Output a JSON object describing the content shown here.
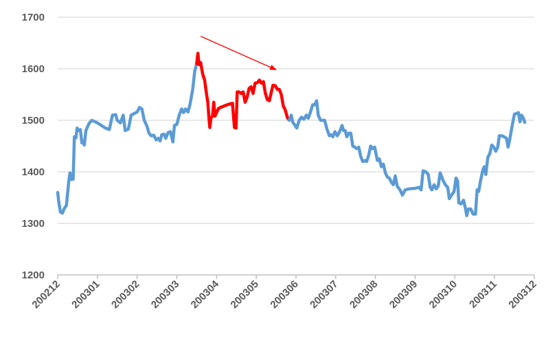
{
  "chart_data": {
    "type": "line",
    "title": "",
    "xlabel": "",
    "ylabel": "",
    "ylim": [
      1200,
      1700
    ],
    "y_ticks": [
      1200,
      1300,
      1400,
      1500,
      1600,
      1700
    ],
    "x_ticks": [
      "200212",
      "200301",
      "200302",
      "200303",
      "200304",
      "200305",
      "200306",
      "200307",
      "200308",
      "200309",
      "200310",
      "200311",
      "200312"
    ],
    "xlim": [
      0,
      12
    ],
    "grid": "horizontal",
    "legend": "none",
    "colors": {
      "series": "#5B9BD5",
      "highlight": "#FF0000",
      "grid": "#D9D9D9",
      "axis": "#BFBFBF",
      "text": "#595959"
    },
    "series": [
      {
        "values": [
          [
            0.0,
            1360
          ],
          [
            0.03,
            1340
          ],
          [
            0.07,
            1322
          ],
          [
            0.12,
            1320
          ],
          [
            0.16,
            1328
          ],
          [
            0.22,
            1335
          ],
          [
            0.28,
            1382
          ],
          [
            0.31,
            1398
          ],
          [
            0.35,
            1385
          ],
          [
            0.39,
            1386
          ],
          [
            0.42,
            1468
          ],
          [
            0.46,
            1466
          ],
          [
            0.49,
            1485
          ],
          [
            0.53,
            1480
          ],
          [
            0.57,
            1482
          ],
          [
            0.61,
            1456
          ],
          [
            0.64,
            1460
          ],
          [
            0.67,
            1452
          ],
          [
            0.71,
            1480
          ],
          [
            0.79,
            1494
          ],
          [
            0.86,
            1500
          ],
          [
            1.0,
            1495
          ],
          [
            1.2,
            1485
          ],
          [
            1.3,
            1482
          ],
          [
            1.38,
            1510
          ],
          [
            1.46,
            1511
          ],
          [
            1.5,
            1500
          ],
          [
            1.58,
            1495
          ],
          [
            1.65,
            1510
          ],
          [
            1.7,
            1480
          ],
          [
            1.78,
            1483
          ],
          [
            1.85,
            1510
          ],
          [
            1.92,
            1513
          ],
          [
            2.0,
            1516
          ],
          [
            2.06,
            1525
          ],
          [
            2.12,
            1522
          ],
          [
            2.18,
            1500
          ],
          [
            2.25,
            1488
          ],
          [
            2.3,
            1475
          ],
          [
            2.35,
            1470
          ],
          [
            2.42,
            1471
          ],
          [
            2.48,
            1462
          ],
          [
            2.53,
            1465
          ],
          [
            2.58,
            1460
          ],
          [
            2.62,
            1472
          ],
          [
            2.68,
            1473
          ],
          [
            2.72,
            1465
          ],
          [
            2.78,
            1476
          ],
          [
            2.84,
            1478
          ],
          [
            2.9,
            1458
          ],
          [
            2.94,
            1490
          ],
          [
            3.0,
            1492
          ],
          [
            3.06,
            1510
          ],
          [
            3.12,
            1522
          ],
          [
            3.17,
            1515
          ],
          [
            3.22,
            1522
          ],
          [
            3.28,
            1516
          ],
          [
            3.33,
            1530
          ],
          [
            3.4,
            1560
          ],
          [
            3.45,
            1595
          ],
          [
            3.5,
            1610
          ]
        ]
      },
      {
        "name": "",
        "highlight": true,
        "values": [
          [
            3.5,
            1610
          ],
          [
            3.53,
            1630
          ],
          [
            3.56,
            1608
          ],
          [
            3.6,
            1612
          ],
          [
            3.65,
            1590
          ],
          [
            3.7,
            1578
          ],
          [
            3.74,
            1555
          ],
          [
            3.78,
            1535
          ],
          [
            3.81,
            1503
          ],
          [
            3.83,
            1486
          ],
          [
            3.86,
            1505
          ],
          [
            3.9,
            1508
          ],
          [
            3.93,
            1535
          ],
          [
            3.96,
            1508
          ],
          [
            4.0,
            1515
          ],
          [
            4.05,
            1523
          ],
          [
            4.1,
            1525
          ],
          [
            4.2,
            1528
          ],
          [
            4.3,
            1531
          ],
          [
            4.4,
            1533
          ],
          [
            4.45,
            1486
          ],
          [
            4.49,
            1485
          ],
          [
            4.52,
            1555
          ],
          [
            4.57,
            1555
          ],
          [
            4.62,
            1552
          ],
          [
            4.67,
            1555
          ],
          [
            4.72,
            1535
          ],
          [
            4.77,
            1545
          ],
          [
            4.82,
            1562
          ],
          [
            4.87,
            1565
          ],
          [
            4.92,
            1552
          ],
          [
            4.97,
            1572
          ],
          [
            5.03,
            1573
          ],
          [
            5.08,
            1578
          ],
          [
            5.13,
            1572
          ],
          [
            5.18,
            1575
          ],
          [
            5.23,
            1552
          ],
          [
            5.28,
            1540
          ],
          [
            5.33,
            1538
          ],
          [
            5.38,
            1555
          ],
          [
            5.42,
            1568
          ],
          [
            5.48,
            1567
          ],
          [
            5.53,
            1560
          ],
          [
            5.58,
            1560
          ],
          [
            5.63,
            1550
          ],
          [
            5.68,
            1528
          ],
          [
            5.73,
            1520
          ],
          [
            5.78,
            1506
          ],
          [
            5.83,
            1500
          ]
        ]
      },
      {
        "values": [
          [
            5.83,
            1500
          ],
          [
            5.88,
            1510
          ],
          [
            5.92,
            1496
          ],
          [
            5.96,
            1492
          ],
          [
            6.02,
            1485
          ],
          [
            6.08,
            1500
          ],
          [
            6.14,
            1506
          ],
          [
            6.2,
            1502
          ],
          [
            6.26,
            1510
          ],
          [
            6.31,
            1504
          ],
          [
            6.36,
            1515
          ],
          [
            6.42,
            1530
          ],
          [
            6.47,
            1530
          ],
          [
            6.52,
            1538
          ],
          [
            6.56,
            1510
          ],
          [
            6.62,
            1500
          ],
          [
            6.68,
            1500
          ],
          [
            6.72,
            1500
          ],
          [
            6.78,
            1483
          ],
          [
            6.84,
            1470
          ],
          [
            6.88,
            1472
          ],
          [
            6.93,
            1468
          ],
          [
            6.98,
            1478
          ],
          [
            7.04,
            1470
          ],
          [
            7.1,
            1478
          ],
          [
            7.16,
            1490
          ],
          [
            7.2,
            1480
          ],
          [
            7.24,
            1480
          ],
          [
            7.28,
            1468
          ],
          [
            7.33,
            1475
          ],
          [
            7.38,
            1475
          ],
          [
            7.43,
            1450
          ],
          [
            7.48,
            1448
          ],
          [
            7.53,
            1445
          ],
          [
            7.58,
            1448
          ],
          [
            7.63,
            1430
          ],
          [
            7.68,
            1420
          ],
          [
            7.73,
            1422
          ],
          [
            7.78,
            1420
          ],
          [
            7.83,
            1432
          ],
          [
            7.88,
            1450
          ],
          [
            7.93,
            1445
          ],
          [
            7.98,
            1448
          ],
          [
            8.05,
            1422
          ],
          [
            8.1,
            1425
          ],
          [
            8.15,
            1410
          ],
          [
            8.2,
            1415
          ],
          [
            8.25,
            1398
          ],
          [
            8.3,
            1390
          ],
          [
            8.35,
            1388
          ],
          [
            8.4,
            1380
          ],
          [
            8.45,
            1375
          ],
          [
            8.5,
            1392
          ],
          [
            8.55,
            1372
          ],
          [
            8.62,
            1365
          ],
          [
            8.68,
            1355
          ],
          [
            8.75,
            1365
          ],
          [
            8.85,
            1367
          ],
          [
            9.0,
            1368
          ],
          [
            9.1,
            1370
          ],
          [
            9.15,
            1365
          ],
          [
            9.2,
            1402
          ],
          [
            9.27,
            1400
          ],
          [
            9.33,
            1395
          ],
          [
            9.38,
            1370
          ],
          [
            9.42,
            1365
          ],
          [
            9.48,
            1375
          ],
          [
            9.53,
            1367
          ],
          [
            9.58,
            1372
          ],
          [
            9.63,
            1398
          ],
          [
            9.7,
            1384
          ],
          [
            9.76,
            1375
          ],
          [
            9.82,
            1370
          ],
          [
            9.86,
            1348
          ],
          [
            9.92,
            1355
          ],
          [
            9.98,
            1362
          ],
          [
            10.03,
            1388
          ],
          [
            10.07,
            1382
          ],
          [
            10.1,
            1340
          ],
          [
            10.16,
            1338
          ],
          [
            10.22,
            1345
          ],
          [
            10.27,
            1328
          ],
          [
            10.3,
            1315
          ],
          [
            10.34,
            1328
          ],
          [
            10.4,
            1328
          ],
          [
            10.46,
            1318
          ],
          [
            10.52,
            1318
          ],
          [
            10.56,
            1365
          ],
          [
            10.6,
            1362
          ],
          [
            10.64,
            1380
          ],
          [
            10.7,
            1402
          ],
          [
            10.74,
            1410
          ],
          [
            10.78,
            1395
          ],
          [
            10.83,
            1428
          ],
          [
            10.88,
            1435
          ],
          [
            10.93,
            1452
          ],
          [
            10.98,
            1448
          ],
          [
            11.03,
            1440
          ],
          [
            11.08,
            1448
          ],
          [
            11.12,
            1470
          ],
          [
            11.18,
            1470
          ],
          [
            11.24,
            1468
          ],
          [
            11.3,
            1465
          ],
          [
            11.34,
            1448
          ],
          [
            11.38,
            1462
          ],
          [
            11.44,
            1488
          ],
          [
            11.5,
            1512
          ],
          [
            11.55,
            1513
          ],
          [
            11.6,
            1515
          ],
          [
            11.64,
            1497
          ],
          [
            11.68,
            1510
          ],
          [
            11.72,
            1505
          ],
          [
            11.76,
            1496
          ]
        ]
      }
    ],
    "annotations": [
      {
        "type": "arrow",
        "from": [
          3.6,
          1663
        ],
        "to": [
          5.5,
          1598
        ],
        "color": "#FF0000"
      }
    ]
  }
}
